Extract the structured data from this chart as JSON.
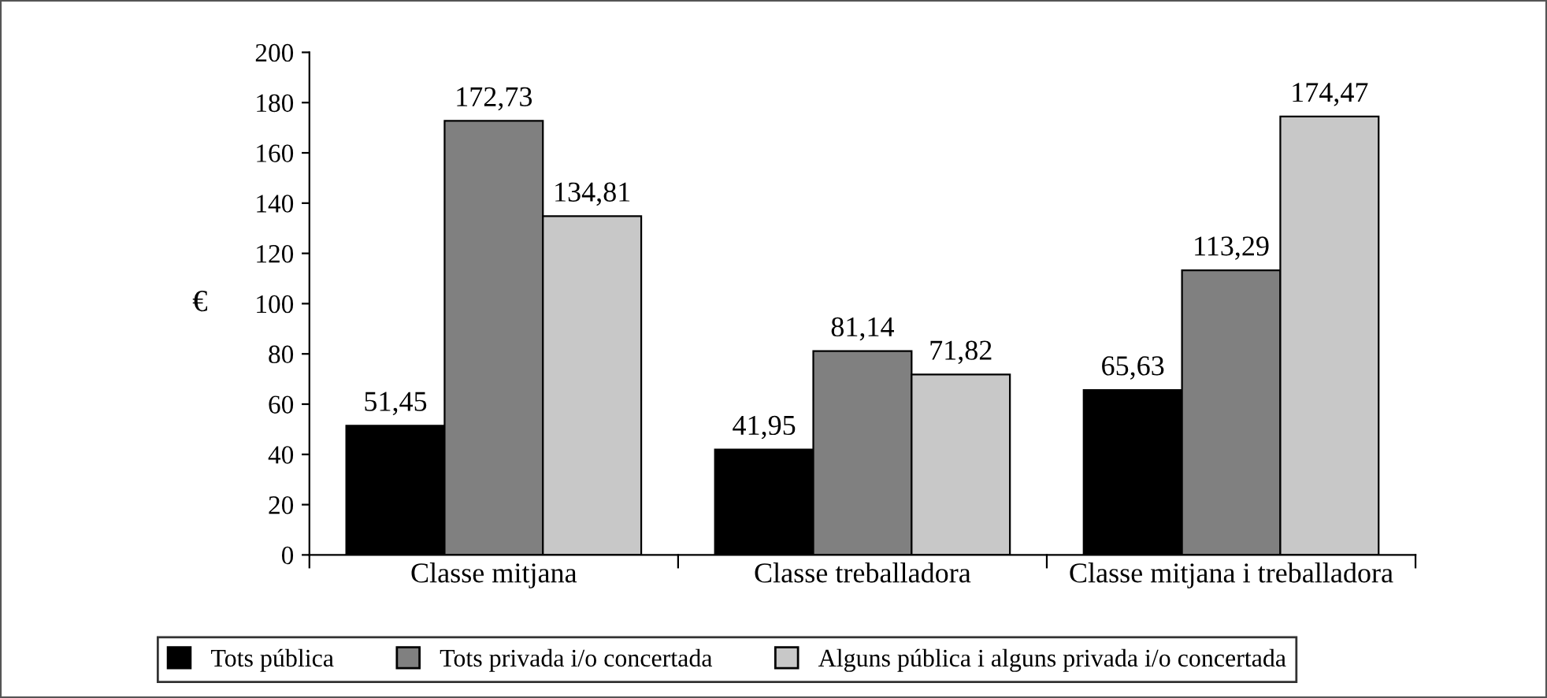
{
  "chart_data": {
    "type": "bar",
    "ylabel": "€",
    "categories": [
      "Classe mitjana",
      "Classe treballadora",
      "Classe mitjana i treballadora"
    ],
    "series": [
      {
        "name": "Tots pública",
        "color": "#000000",
        "values": [
          51.45,
          41.95,
          65.63
        ],
        "value_labels": [
          "51,45",
          "41,95",
          "65,63"
        ]
      },
      {
        "name": "Tots privada i/o concertada",
        "color": "#808080",
        "values": [
          172.73,
          81.14,
          113.29
        ],
        "value_labels": [
          "172,73",
          "81,14",
          "113,29"
        ]
      },
      {
        "name": "Alguns pública i alguns privada i/o concertada",
        "color": "#c8c8c8",
        "values": [
          134.81,
          71.82,
          174.47
        ],
        "value_labels": [
          "134,81",
          "71,82",
          "174,47"
        ]
      }
    ],
    "ylim": [
      0,
      200
    ],
    "yticks": [
      0,
      20,
      40,
      60,
      80,
      100,
      120,
      140,
      160,
      180,
      200
    ],
    "grid": false,
    "legend": "bottom"
  }
}
